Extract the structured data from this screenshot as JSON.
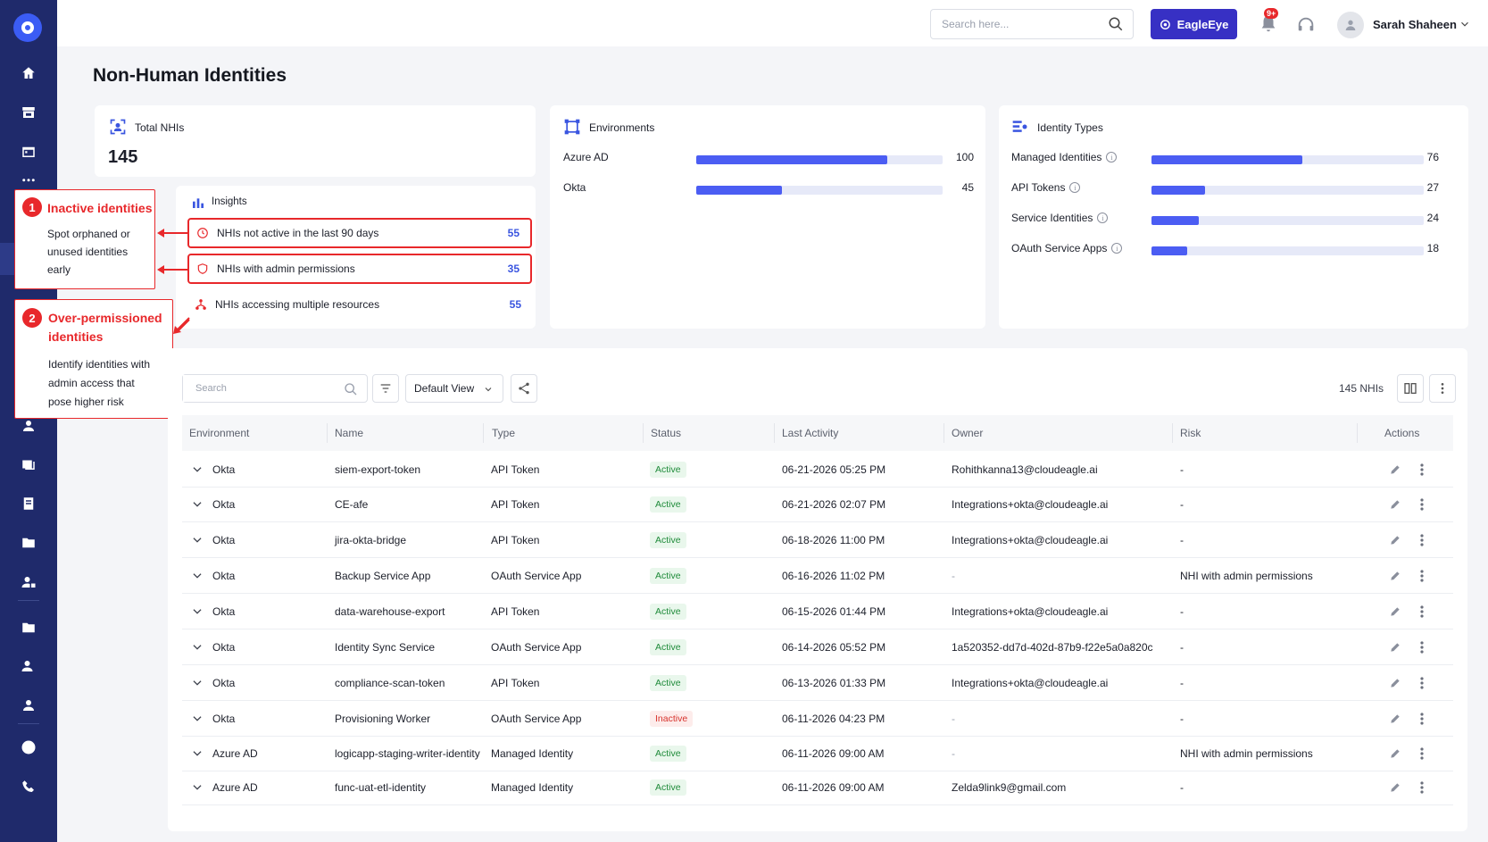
{
  "header": {
    "search_placeholder": "Search here...",
    "eagle_button": "EagleEye",
    "notification_badge": "9+",
    "user_name": "Sarah Shaheen"
  },
  "page": {
    "title": "Non-Human Identities"
  },
  "total_card": {
    "label": "Total NHIs",
    "value": "145"
  },
  "insights": {
    "title": "Insights",
    "items": [
      {
        "label": "NHIs not active in the last 90 days",
        "count": "55"
      },
      {
        "label": "NHIs with admin permissions",
        "count": "35"
      },
      {
        "label": "NHIs accessing multiple resources",
        "count": "55"
      }
    ]
  },
  "environments": {
    "title": "Environments",
    "max": 100,
    "items": [
      {
        "label": "Azure AD",
        "value": 100,
        "display": "100"
      },
      {
        "label": "Okta",
        "value": 45,
        "display": "45"
      }
    ]
  },
  "identity_types": {
    "title": "Identity Types",
    "max": 145,
    "items": [
      {
        "label": "Managed Identities",
        "value": 76,
        "display": "76"
      },
      {
        "label": "API Tokens",
        "value": 27,
        "display": "27"
      },
      {
        "label": "Service Identities",
        "value": 24,
        "display": "24"
      },
      {
        "label": "OAuth Service Apps",
        "value": 18,
        "display": "18"
      }
    ]
  },
  "callouts": [
    {
      "number": "1",
      "title": "Inactive identities",
      "description": [
        "Spot orphaned or",
        "unused identities",
        "early"
      ]
    },
    {
      "number": "2",
      "title": [
        "Over-permissioned",
        "identities"
      ],
      "description": [
        "Identify identities with",
        "admin access that",
        "pose higher risk"
      ]
    }
  ],
  "toolbar": {
    "search_placeholder": "Search",
    "view_label": "Default View",
    "count_label": "145 NHIs"
  },
  "table": {
    "columns": [
      "Environment",
      "Name",
      "Type",
      "Status",
      "Last Activity",
      "Owner",
      "Risk",
      "Actions"
    ],
    "rows": [
      {
        "env": "Okta",
        "name": "siem-export-token",
        "type": "API Token",
        "status": "Active",
        "last": "06-21-2026 05:25 PM",
        "owner": "Rohithkanna13@cloudeagle.ai",
        "risk": "-"
      },
      {
        "env": "Okta",
        "name": "CE-afe",
        "type": "API Token",
        "status": "Active",
        "last": "06-21-2026 02:07 PM",
        "owner": "Integrations+okta@cloudeagle.ai",
        "risk": "-"
      },
      {
        "env": "Okta",
        "name": "jira-okta-bridge",
        "type": "API Token",
        "status": "Active",
        "last": "06-18-2026 11:00 PM",
        "owner": "Integrations+okta@cloudeagle.ai",
        "risk": "-"
      },
      {
        "env": "Okta",
        "name": "Backup Service App",
        "type": "OAuth Service App",
        "status": "Active",
        "last": "06-16-2026 11:02 PM",
        "owner": "-",
        "risk": "NHI with admin permissions"
      },
      {
        "env": "Okta",
        "name": "data-warehouse-export",
        "type": "API Token",
        "status": "Active",
        "last": "06-15-2026 01:44 PM",
        "owner": "Integrations+okta@cloudeagle.ai",
        "risk": "-"
      },
      {
        "env": "Okta",
        "name": "Identity Sync Service",
        "type": "OAuth Service App",
        "status": "Active",
        "last": "06-14-2026 05:52 PM",
        "owner": "1a520352-dd7d-402d-87b9-f22e5a0a820c",
        "risk": "-"
      },
      {
        "env": "Okta",
        "name": "compliance-scan-token",
        "type": "API Token",
        "status": "Active",
        "last": "06-13-2026 01:33 PM",
        "owner": "Integrations+okta@cloudeagle.ai",
        "risk": "-"
      },
      {
        "env": "Okta",
        "name": "Provisioning Worker",
        "type": "OAuth Service App",
        "status": "Inactive",
        "last": "06-11-2026 04:23 PM",
        "owner": "-",
        "risk": "-"
      },
      {
        "env": "Azure AD",
        "name": "logicapp-staging-writer-identity",
        "type": "Managed Identity",
        "status": "Active",
        "last": "06-11-2026 09:00 AM",
        "owner": "-",
        "risk": "NHI with admin permissions"
      },
      {
        "env": "Azure AD",
        "name": "func-uat-etl-identity",
        "type": "Managed Identity",
        "status": "Active",
        "last": "06-11-2026 09:00 AM",
        "owner": "Zelda9link9@gmail.com",
        "risk": "-"
      }
    ]
  },
  "colors": {
    "sidebar": "#1f2a6b",
    "accent": "#3730c4",
    "bar": "#4b5df3",
    "callout": "#e8282b"
  }
}
